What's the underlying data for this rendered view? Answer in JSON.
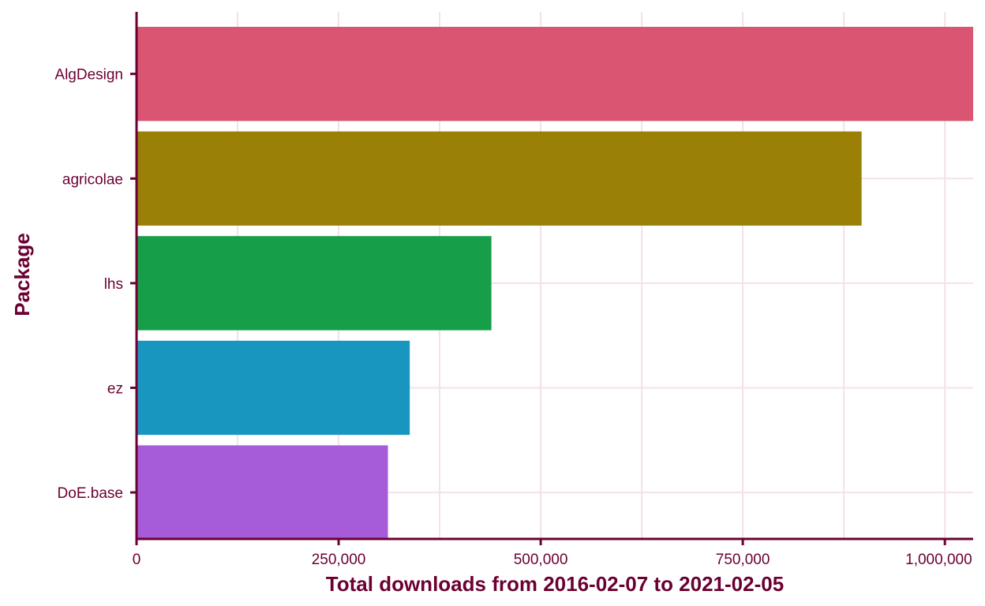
{
  "chart_data": {
    "type": "bar",
    "orientation": "horizontal",
    "categories": [
      "AlgDesign",
      "agricolae",
      "lhs",
      "ez",
      "DoE.base"
    ],
    "values": [
      1035000,
      897000,
      439000,
      338000,
      311000
    ],
    "colors": [
      "#d95572",
      "#9a8006",
      "#179e48",
      "#1896c0",
      "#a65cd9"
    ],
    "xlabel": "Total downloads from 2016-02-07 to 2021-02-05",
    "ylabel": "Package",
    "xlim": [
      0,
      1035000
    ],
    "xticks": [
      0,
      250000,
      500000,
      750000,
      1000000
    ],
    "xtick_labels": [
      "0",
      "250,000",
      "500,000",
      "750,000",
      "1,000,000"
    ],
    "xminor": [
      125000,
      375000,
      625000,
      875000
    ],
    "grid": true,
    "legend": "none",
    "axis_color": "#6b0032",
    "grid_color": "#f3e1ea"
  }
}
